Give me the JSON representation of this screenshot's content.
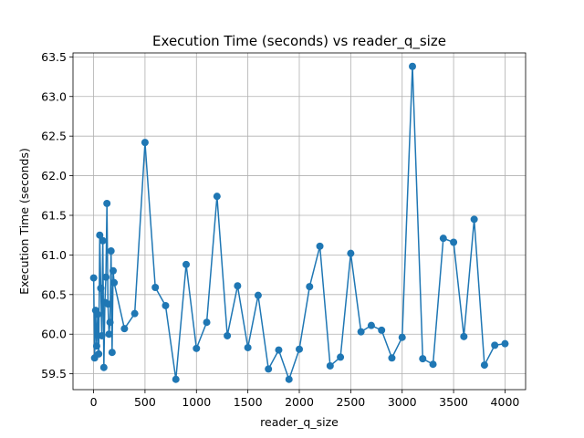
{
  "chart_data": {
    "type": "line",
    "title": "Execution Time (seconds) vs reader_q_size",
    "xlabel": "reader_q_size",
    "ylabel": "Execution Time (seconds)",
    "xlim": [
      -200,
      4200
    ],
    "ylim": [
      59.3,
      63.55
    ],
    "xticks": [
      0,
      500,
      1000,
      1500,
      2000,
      2500,
      3000,
      3500,
      4000
    ],
    "xtick_labels": [
      "0",
      "500",
      "1000",
      "1500",
      "2000",
      "2500",
      "3000",
      "3500",
      "4000"
    ],
    "yticks": [
      59.5,
      60.0,
      60.5,
      61.0,
      61.5,
      62.0,
      62.5,
      63.0,
      63.5
    ],
    "ytick_labels": [
      "59.5",
      "60.0",
      "60.5",
      "61.0",
      "61.5",
      "62.0",
      "62.5",
      "63.0",
      "63.5"
    ],
    "grid": true,
    "color": "#1f77b4",
    "series": [
      {
        "x": [
          1,
          10,
          20,
          30,
          40,
          50,
          60,
          70,
          80,
          90,
          100,
          110,
          120,
          130,
          140,
          150,
          160,
          170,
          180,
          190,
          200,
          300,
          400,
          500,
          600,
          700,
          800,
          900,
          1000,
          1100,
          1200,
          1300,
          1400,
          1500,
          1600,
          1700,
          1800,
          1900,
          2000,
          2100,
          2200,
          2300,
          2400,
          2500,
          2600,
          2700,
          2800,
          2900,
          3000,
          3100,
          3200,
          3300,
          3400,
          3500,
          3600,
          3700,
          3800,
          3900,
          4000
        ],
        "y": [
          60.71,
          59.7,
          60.3,
          59.85,
          60.25,
          59.75,
          61.25,
          60.58,
          59.98,
          61.18,
          59.58,
          60.4,
          60.72,
          61.65,
          60.38,
          60.0,
          60.15,
          61.05,
          59.77,
          60.8,
          60.65,
          60.07,
          60.26,
          62.42,
          60.59,
          60.36,
          59.43,
          60.88,
          59.82,
          60.15,
          61.74,
          59.98,
          60.61,
          59.83,
          60.49,
          59.56,
          59.8,
          59.43,
          59.81,
          60.6,
          61.11,
          59.6,
          59.71,
          61.02,
          60.03,
          60.11,
          60.05,
          59.7,
          59.96,
          63.38,
          59.69,
          59.62,
          61.21,
          61.16,
          59.97,
          61.45,
          59.61,
          59.86,
          59.88
        ]
      }
    ]
  }
}
